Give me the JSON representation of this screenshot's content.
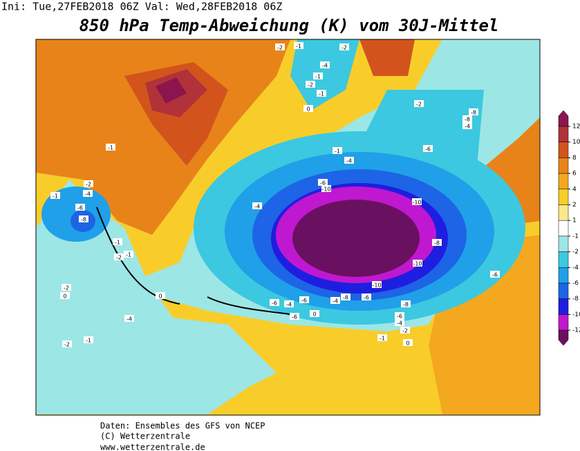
{
  "header": {
    "run": "Ini: Tue,27FEB2018 06Z  Val: Wed,28FEB2018 06Z",
    "title": "850 hPa Temp-Abweichung (K) vom 30J-Mittel"
  },
  "colorbar": {
    "ticks": [
      12,
      10,
      8,
      6,
      4,
      2,
      1,
      -1,
      -2,
      -4,
      -6,
      -8,
      -10,
      -12
    ],
    "colors": [
      "#8c1550",
      "#b2323a",
      "#d2541c",
      "#e8831a",
      "#f4a81f",
      "#f8cd2a",
      "#fbe88c",
      "#ffffff",
      "#9ce6e6",
      "#3cc8e0",
      "#20a0e8",
      "#1e64e6",
      "#1e1ee0",
      "#c018d0",
      "#6a1060"
    ]
  },
  "contour_labels": [
    -2,
    -1,
    -2,
    -4,
    -1,
    -2,
    -1,
    0,
    -2,
    -8,
    -8,
    -4,
    -6,
    -4,
    -1,
    -6,
    -10,
    -10,
    -4,
    -8,
    -10,
    -10,
    -6,
    -6,
    -4,
    -6,
    -4,
    -8,
    -6,
    -8,
    -6,
    -4,
    -2,
    -1,
    0,
    -1,
    -2,
    -4,
    -1,
    -6,
    -8,
    -1,
    -2,
    -1,
    -2,
    0,
    0,
    -4,
    -1,
    -2,
    -6,
    0
  ],
  "footer": {
    "source": "Daten: Ensembles des GFS von NCEP",
    "copyright": "(C) Wetterzentrale",
    "url": "www.wetterzentrale.de"
  }
}
